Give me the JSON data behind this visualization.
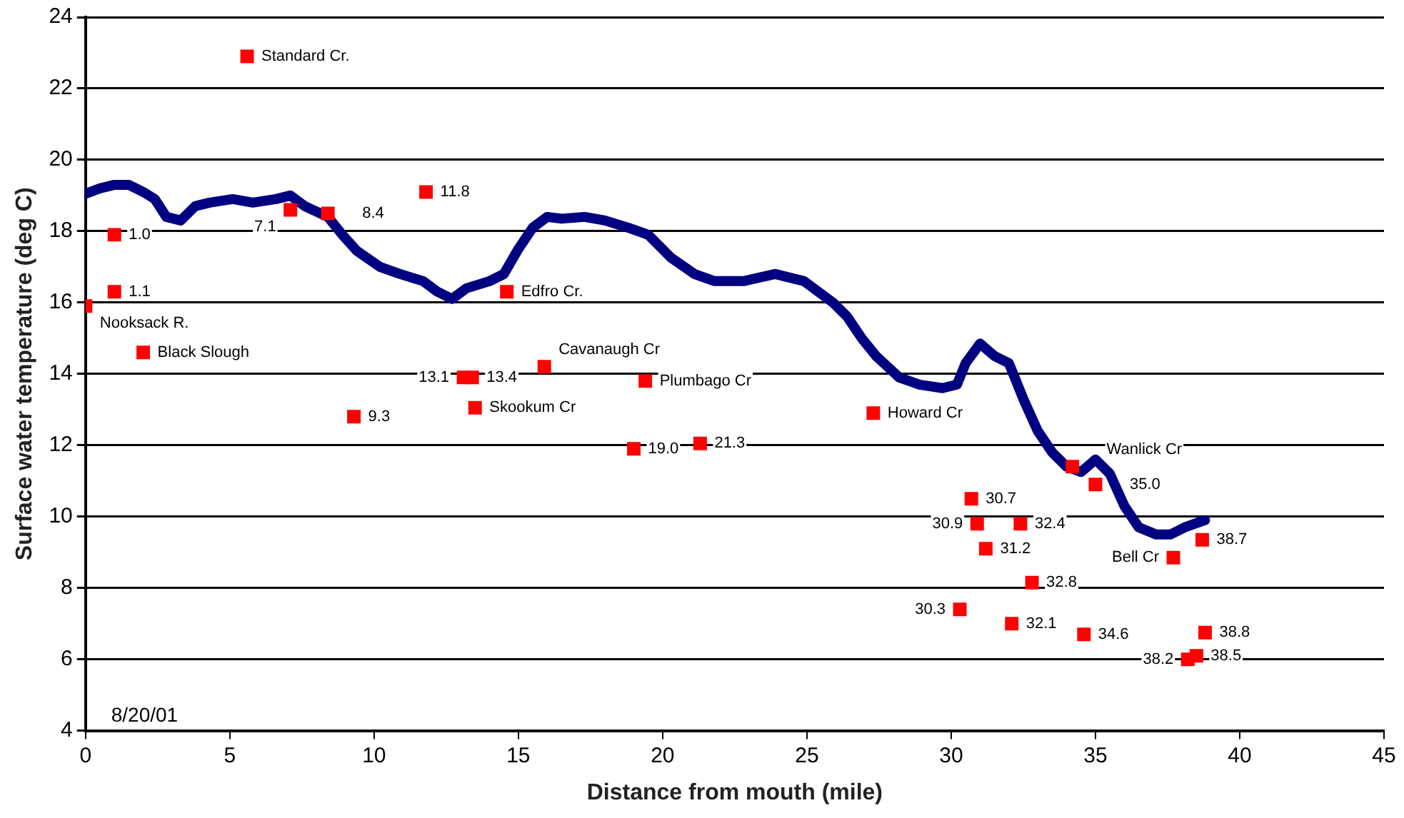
{
  "chart_data": {
    "type": "scatter",
    "xlabel": "Distance from mouth (mile)",
    "ylabel": "Surface water temperature (deg C)",
    "xlim": [
      0,
      45
    ],
    "xticks": [
      0,
      5,
      10,
      15,
      20,
      25,
      30,
      35,
      40,
      45
    ],
    "ylim": [
      4,
      24
    ],
    "yticks": [
      4,
      6,
      8,
      10,
      12,
      14,
      16,
      18,
      20,
      22,
      24
    ],
    "grid": "y",
    "legend": false,
    "annotations": [
      "8/20/01",
      {
        "text": "Standard Cr.",
        "x": 5.6,
        "y": 22.9
      },
      {
        "text": "1.0",
        "x": 1.0,
        "y": 17.9
      },
      {
        "text": "1.1",
        "x": 1.0,
        "y": 16.3
      },
      {
        "text": "Nooksack R.",
        "x": 0,
        "y": 15.9
      },
      {
        "text": "Black Slough",
        "x": 2.0,
        "y": 14.6
      },
      {
        "text": "7.1",
        "x": 7.1,
        "y": 18.6
      },
      {
        "text": "8.4",
        "x": 8.4,
        "y": 18.5
      },
      {
        "text": "11.8",
        "x": 11.8,
        "y": 19.1
      },
      {
        "text": "Edfro Cr.",
        "x": 14.6,
        "y": 16.3
      },
      {
        "text": "13.1",
        "x": 13.1,
        "y": 13.9
      },
      {
        "text": "13.4",
        "x": 13.4,
        "y": 13.9
      },
      {
        "text": "Cavanaugh Cr",
        "x": 15.9,
        "y": 14.2
      },
      {
        "text": "Skookum Cr",
        "x": 13.5,
        "y": 13.05
      },
      {
        "text": "Plumbago Cr",
        "x": 19.4,
        "y": 13.8
      },
      {
        "text": "9.3",
        "x": 9.3,
        "y": 12.8
      },
      {
        "text": "19.0",
        "x": 19.0,
        "y": 11.9
      },
      {
        "text": "21.3",
        "x": 21.3,
        "y": 12.05
      },
      {
        "text": "Howard Cr",
        "x": 27.3,
        "y": 12.9
      },
      {
        "text": "Wanlick Cr",
        "x": 34.2,
        "y": 11.4
      },
      {
        "text": "35.0",
        "x": 35.0,
        "y": 10.9
      },
      {
        "text": "30.7",
        "x": 30.7,
        "y": 10.5
      },
      {
        "text": "30.9",
        "x": 30.9,
        "y": 9.8
      },
      {
        "text": "32.4",
        "x": 32.4,
        "y": 9.8
      },
      {
        "text": "31.2",
        "x": 31.2,
        "y": 9.1
      },
      {
        "text": "32.8",
        "x": 32.8,
        "y": 8.15
      },
      {
        "text": "30.3",
        "x": 30.3,
        "y": 7.4
      },
      {
        "text": "32.1",
        "x": 32.1,
        "y": 7.0
      },
      {
        "text": "34.6",
        "x": 34.6,
        "y": 6.7
      },
      {
        "text": "38.7",
        "x": 38.7,
        "y": 9.35
      },
      {
        "text": "Bell Cr",
        "x": 37.7,
        "y": 8.85
      },
      {
        "text": "38.8",
        "x": 38.8,
        "y": 6.75
      },
      {
        "text": "38.5",
        "x": 38.5,
        "y": 6.1
      },
      {
        "text": "38.2",
        "x": 38.2,
        "y": 6.0
      }
    ],
    "series": [
      {
        "type": "line",
        "color": "#000080",
        "marker": "none",
        "x": [
          0,
          0.5,
          1.0,
          1.5,
          2.0,
          2.4,
          2.8,
          3.3,
          3.8,
          4.3,
          5.1,
          5.8,
          6.6,
          7.1,
          7.6,
          8.4,
          8.9,
          9.4,
          10.2,
          10.9,
          11.7,
          12.2,
          12.7,
          13.2,
          14.0,
          14.5,
          15.0,
          15.5,
          16.0,
          16.5,
          17.3,
          18.0,
          18.8,
          19.5,
          20.3,
          21.1,
          21.8,
          22.8,
          23.9,
          24.9,
          25.9,
          26.4,
          26.9,
          27.4,
          28.2,
          28.9,
          29.7,
          30.2,
          30.5,
          31.0,
          31.5,
          32.0,
          32.5,
          33.0,
          33.5,
          34.0,
          34.5,
          35.0,
          35.5,
          36.0,
          36.5,
          37.1,
          37.6,
          38.1,
          38.8
        ],
        "values": [
          19.05,
          19.2,
          19.3,
          19.3,
          19.1,
          18.9,
          18.4,
          18.3,
          18.7,
          18.8,
          18.9,
          18.8,
          18.9,
          19.0,
          18.7,
          18.4,
          17.9,
          17.45,
          17.0,
          16.8,
          16.6,
          16.3,
          16.1,
          16.4,
          16.6,
          16.8,
          17.5,
          18.1,
          18.4,
          18.35,
          18.4,
          18.3,
          18.1,
          17.9,
          17.25,
          16.8,
          16.6,
          16.6,
          16.8,
          16.6,
          16.0,
          15.6,
          15.0,
          14.5,
          13.9,
          13.7,
          13.6,
          13.7,
          14.3,
          14.85,
          14.5,
          14.3,
          13.3,
          12.4,
          11.8,
          11.4,
          11.25,
          11.6,
          11.2,
          10.3,
          9.7,
          9.5,
          9.5,
          9.7,
          9.9
        ]
      },
      {
        "type": "scatter",
        "color": "#ff0000",
        "marker": "square",
        "x": [
          5.6,
          1.0,
          1.0,
          0,
          2.0,
          7.1,
          8.4,
          11.8,
          14.6,
          13.1,
          13.4,
          15.9,
          13.5,
          19.4,
          9.3,
          19.0,
          21.3,
          27.3,
          34.2,
          35.0,
          30.7,
          30.9,
          32.4,
          31.2,
          32.8,
          30.3,
          32.1,
          34.6,
          38.7,
          37.7,
          38.8,
          38.5,
          38.2
        ],
        "values": [
          22.9,
          17.9,
          16.3,
          15.9,
          14.6,
          18.6,
          18.5,
          19.1,
          16.3,
          13.9,
          13.9,
          14.2,
          13.05,
          13.8,
          12.8,
          11.9,
          12.05,
          12.9,
          11.4,
          10.9,
          10.5,
          9.8,
          9.8,
          9.1,
          8.15,
          7.4,
          7.0,
          6.7,
          9.35,
          8.85,
          6.75,
          6.1,
          6.0
        ]
      }
    ]
  }
}
